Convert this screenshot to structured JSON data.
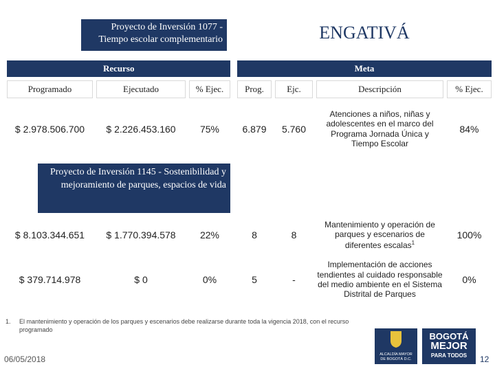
{
  "header": {
    "project": "Proyecto de Inversión 1077 - Tiempo escolar complementario",
    "locality": "ENGATIVÁ"
  },
  "groups": [
    "Recurso",
    "Meta"
  ],
  "columns": [
    "Programado",
    "Ejecutado",
    "% Ejec.",
    "Prog.",
    "Ejc.",
    "Descripción",
    "% Ejec."
  ],
  "table1": {
    "rows": [
      [
        "$ 2.978.506.700",
        "$ 2.226.453.160",
        "75%",
        "6.879",
        "5.760",
        "Atenciones a niños, niñas y adolescentes en el marco del Programa Jornada Única y Tiempo Escolar",
        "84%"
      ]
    ]
  },
  "project2": "Proyecto de Inversión 1145 - Sostenibilidad y mejoramiento de parques, espacios de vida",
  "table2": {
    "rows": [
      [
        "$ 8.103.344.651",
        "$ 1.770.394.578",
        "22%",
        "8",
        "8",
        "Mantenimiento y operación de parques y escenarios de diferentes escalas",
        "100%"
      ],
      [
        "$ 379.714.978",
        "$ 0",
        "0%",
        "5",
        "-",
        "Implementación de acciones tendientes al cuidado responsable del medio ambiente en el Sistema Distrital de Parques",
        "0%"
      ]
    ],
    "note_ref": "1"
  },
  "footnote": {
    "marker": "1.",
    "text": "El mantenimiento y operación de los parques y escenarios  debe realizarse durante toda la vigencia 2018, con el recurso programado"
  },
  "footer": {
    "date": "06/05/2018",
    "logo_left": "ALCALDÍA MAYOR DE BOGOTÁ D.C.",
    "logo_right_1": "BOGOTÁ",
    "logo_right_2": "MEJOR",
    "logo_right_3": "PARA TODOS",
    "page": "12"
  }
}
